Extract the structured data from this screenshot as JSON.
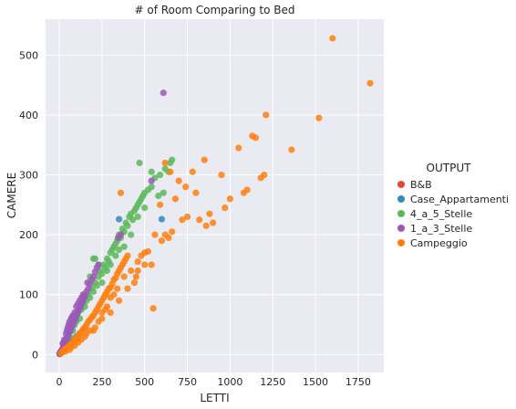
{
  "chart_data": {
    "type": "scatter",
    "title": "# of Room Comparing to Bed",
    "xlabel": "LETTI",
    "ylabel": "CAMERE",
    "xlim": [
      -80,
      1900
    ],
    "ylim": [
      -30,
      560
    ],
    "xticks": [
      0,
      250,
      500,
      750,
      1000,
      1250,
      1500,
      1750
    ],
    "yticks": [
      0,
      100,
      200,
      300,
      400,
      500
    ],
    "grid": true,
    "background": "#eaeaf2",
    "legend": {
      "title": "OUTPUT",
      "placement": "right"
    },
    "series": [
      {
        "name": "B&B",
        "color": "#e24a33",
        "points": [
          [
            2,
            1
          ],
          [
            3,
            2
          ],
          [
            4,
            2
          ],
          [
            5,
            3
          ],
          [
            6,
            3
          ],
          [
            5,
            2
          ],
          [
            8,
            4
          ],
          [
            4,
            1
          ],
          [
            6,
            2
          ],
          [
            10,
            5
          ]
        ]
      },
      {
        "name": "Case_Appartamenti",
        "color": "#348abd",
        "points": [
          [
            5,
            2
          ],
          [
            10,
            3
          ],
          [
            15,
            6
          ],
          [
            20,
            8
          ],
          [
            30,
            12
          ],
          [
            40,
            15
          ],
          [
            60,
            20
          ],
          [
            80,
            26
          ],
          [
            100,
            30
          ],
          [
            50,
            18
          ],
          [
            25,
            9
          ],
          [
            70,
            22
          ],
          [
            120,
            35
          ],
          [
            150,
            45
          ],
          [
            350,
            226
          ],
          [
            600,
            226
          ],
          [
            40,
            10
          ],
          [
            90,
            25
          ]
        ]
      },
      {
        "name": "4_a_5_Stelle",
        "color": "#5cb85c",
        "points": [
          [
            60,
            30
          ],
          [
            80,
            40
          ],
          [
            100,
            55
          ],
          [
            110,
            70
          ],
          [
            120,
            60
          ],
          [
            130,
            75
          ],
          [
            140,
            85
          ],
          [
            150,
            80
          ],
          [
            160,
            90
          ],
          [
            170,
            100
          ],
          [
            180,
            95
          ],
          [
            190,
            110
          ],
          [
            200,
            105
          ],
          [
            210,
            120
          ],
          [
            220,
            115
          ],
          [
            230,
            130
          ],
          [
            240,
            140
          ],
          [
            250,
            135
          ],
          [
            260,
            150
          ],
          [
            270,
            145
          ],
          [
            280,
            160
          ],
          [
            290,
            155
          ],
          [
            300,
            170
          ],
          [
            310,
            175
          ],
          [
            320,
            180
          ],
          [
            330,
            185
          ],
          [
            340,
            190
          ],
          [
            350,
            200
          ],
          [
            360,
            195
          ],
          [
            370,
            210
          ],
          [
            380,
            205
          ],
          [
            390,
            220
          ],
          [
            400,
            215
          ],
          [
            410,
            230
          ],
          [
            420,
            235
          ],
          [
            430,
            225
          ],
          [
            440,
            240
          ],
          [
            450,
            245
          ],
          [
            460,
            250
          ],
          [
            470,
            255
          ],
          [
            480,
            260
          ],
          [
            490,
            265
          ],
          [
            500,
            270
          ],
          [
            520,
            275
          ],
          [
            540,
            280
          ],
          [
            560,
            295
          ],
          [
            590,
            300
          ],
          [
            620,
            310
          ],
          [
            650,
            320
          ],
          [
            660,
            325
          ],
          [
            470,
            320
          ],
          [
            540,
            305
          ],
          [
            200,
            160
          ],
          [
            150,
            100
          ],
          [
            90,
            50
          ],
          [
            300,
            150
          ],
          [
            250,
            120
          ],
          [
            350,
            175
          ],
          [
            420,
            200
          ],
          [
            460,
            230
          ],
          [
            500,
            245
          ],
          [
            380,
            180
          ],
          [
            280,
            140
          ],
          [
            330,
            165
          ],
          [
            180,
            130
          ],
          [
            230,
            150
          ],
          [
            210,
            160
          ],
          [
            610,
            270
          ],
          [
            580,
            265
          ],
          [
            640,
            305
          ]
        ]
      },
      {
        "name": "1_a_3_Stelle",
        "color": "#9b59b6",
        "points": [
          [
            10,
            5
          ],
          [
            15,
            8
          ],
          [
            20,
            10
          ],
          [
            25,
            15
          ],
          [
            30,
            18
          ],
          [
            35,
            20
          ],
          [
            40,
            25
          ],
          [
            45,
            28
          ],
          [
            50,
            30
          ],
          [
            55,
            35
          ],
          [
            60,
            38
          ],
          [
            65,
            40
          ],
          [
            70,
            45
          ],
          [
            75,
            48
          ],
          [
            80,
            50
          ],
          [
            85,
            55
          ],
          [
            90,
            58
          ],
          [
            95,
            60
          ],
          [
            100,
            65
          ],
          [
            105,
            68
          ],
          [
            110,
            72
          ],
          [
            115,
            75
          ],
          [
            120,
            78
          ],
          [
            125,
            80
          ],
          [
            130,
            85
          ],
          [
            135,
            88
          ],
          [
            140,
            92
          ],
          [
            145,
            95
          ],
          [
            150,
            98
          ],
          [
            160,
            105
          ],
          [
            170,
            110
          ],
          [
            180,
            118
          ],
          [
            190,
            125
          ],
          [
            200,
            130
          ],
          [
            210,
            138
          ],
          [
            220,
            145
          ],
          [
            230,
            150
          ],
          [
            50,
            45
          ],
          [
            60,
            55
          ],
          [
            70,
            60
          ],
          [
            40,
            35
          ],
          [
            80,
            65
          ],
          [
            100,
            80
          ],
          [
            120,
            90
          ],
          [
            30,
            25
          ],
          [
            55,
            50
          ],
          [
            25,
            20
          ],
          [
            140,
            100
          ],
          [
            90,
            70
          ],
          [
            110,
            85
          ],
          [
            165,
            120
          ],
          [
            345,
            195
          ],
          [
            360,
            200
          ],
          [
            540,
            290
          ],
          [
            610,
            437
          ],
          [
            20,
            18
          ],
          [
            45,
            40
          ],
          [
            65,
            52
          ],
          [
            75,
            62
          ],
          [
            130,
            95
          ]
        ]
      },
      {
        "name": "Campeggio",
        "color": "#ff7f0e",
        "points": [
          [
            10,
            2
          ],
          [
            20,
            5
          ],
          [
            30,
            8
          ],
          [
            40,
            10
          ],
          [
            50,
            12
          ],
          [
            60,
            15
          ],
          [
            70,
            18
          ],
          [
            80,
            20
          ],
          [
            90,
            25
          ],
          [
            100,
            28
          ],
          [
            110,
            30
          ],
          [
            120,
            35
          ],
          [
            130,
            38
          ],
          [
            140,
            42
          ],
          [
            150,
            45
          ],
          [
            160,
            50
          ],
          [
            170,
            55
          ],
          [
            180,
            58
          ],
          [
            190,
            62
          ],
          [
            200,
            65
          ],
          [
            210,
            70
          ],
          [
            220,
            75
          ],
          [
            230,
            80
          ],
          [
            240,
            85
          ],
          [
            250,
            90
          ],
          [
            260,
            95
          ],
          [
            270,
            100
          ],
          [
            280,
            105
          ],
          [
            290,
            110
          ],
          [
            300,
            112
          ],
          [
            310,
            118
          ],
          [
            320,
            125
          ],
          [
            330,
            128
          ],
          [
            340,
            135
          ],
          [
            350,
            140
          ],
          [
            360,
            145
          ],
          [
            370,
            150
          ],
          [
            380,
            155
          ],
          [
            390,
            160
          ],
          [
            400,
            165
          ],
          [
            150,
            30
          ],
          [
            200,
            40
          ],
          [
            250,
            60
          ],
          [
            300,
            70
          ],
          [
            350,
            90
          ],
          [
            400,
            110
          ],
          [
            450,
            130
          ],
          [
            500,
            150
          ],
          [
            250,
            70
          ],
          [
            280,
            80
          ],
          [
            320,
            100
          ],
          [
            230,
            55
          ],
          [
            180,
            40
          ],
          [
            130,
            25
          ],
          [
            90,
            15
          ],
          [
            60,
            8
          ],
          [
            420,
            140
          ],
          [
            460,
            155
          ],
          [
            480,
            165
          ],
          [
            500,
            170
          ],
          [
            520,
            172
          ],
          [
            540,
            150
          ],
          [
            550,
            77
          ],
          [
            560,
            200
          ],
          [
            600,
            190
          ],
          [
            620,
            200
          ],
          [
            640,
            195
          ],
          [
            660,
            205
          ],
          [
            680,
            260
          ],
          [
            700,
            290
          ],
          [
            720,
            225
          ],
          [
            750,
            230
          ],
          [
            780,
            305
          ],
          [
            800,
            270
          ],
          [
            820,
            225
          ],
          [
            850,
            325
          ],
          [
            860,
            215
          ],
          [
            880,
            235
          ],
          [
            900,
            220
          ],
          [
            950,
            300
          ],
          [
            970,
            245
          ],
          [
            1000,
            260
          ],
          [
            1050,
            345
          ],
          [
            1080,
            270
          ],
          [
            1100,
            275
          ],
          [
            1130,
            365
          ],
          [
            1150,
            362
          ],
          [
            1180,
            295
          ],
          [
            1200,
            300
          ],
          [
            1210,
            400
          ],
          [
            1360,
            342
          ],
          [
            1520,
            395
          ],
          [
            1600,
            528
          ],
          [
            1820,
            453
          ],
          [
            360,
            270
          ],
          [
            620,
            320
          ],
          [
            740,
            280
          ],
          [
            440,
            120
          ],
          [
            380,
            130
          ],
          [
            340,
            110
          ],
          [
            270,
            75
          ],
          [
            210,
            45
          ],
          [
            160,
            35
          ],
          [
            110,
            20
          ],
          [
            70,
            12
          ],
          [
            35,
            5
          ],
          [
            650,
            305
          ],
          [
            590,
            250
          ],
          [
            300,
            95
          ],
          [
            460,
            140
          ]
        ]
      }
    ]
  }
}
